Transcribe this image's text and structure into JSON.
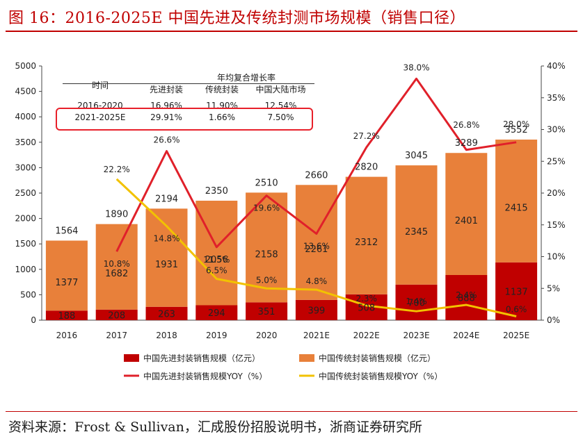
{
  "title": "图 16：2016-2025E 中国先进及传统封测市场规模（销售口径）",
  "source": "资料来源：Frost & Sullivan，汇成股份招股说明书，浙商证券研究所",
  "cagr_table": {
    "header_time": "时间",
    "header_group": "年均复合增长率",
    "col_advanced": "先进封装",
    "col_traditional": "传统封装",
    "col_mainland": "中国大陆市场",
    "rows": [
      {
        "period": "2016-2020",
        "advanced": "16.96%",
        "traditional": "11.90%",
        "mainland": "12.54%"
      },
      {
        "period": "2021-2025E",
        "advanced": "29.91%",
        "traditional": "1.66%",
        "mainland": "7.50%"
      }
    ]
  },
  "chart_data": {
    "type": "bar",
    "stacked": true,
    "categories": [
      "2016",
      "2017",
      "2018",
      "2019",
      "2020",
      "2021E",
      "2022E",
      "2023E",
      "2024E",
      "2025E"
    ],
    "series": [
      {
        "name": "中国先进封装销售规模（亿元）",
        "kind": "bar",
        "color": "#c00000",
        "values": [
          188,
          208,
          263,
          294,
          351,
          399,
          508,
          700,
          888,
          1137
        ]
      },
      {
        "name": "中国传统封装销售规模（亿元）",
        "kind": "bar",
        "color": "#e8803a",
        "values": [
          1377,
          1682,
          1931,
          2056,
          2158,
          2261,
          2312,
          2345,
          2401,
          2415
        ]
      },
      {
        "name": "中国先进封装销售规模YOY（%）",
        "kind": "line",
        "axis": "right",
        "color": "#e0202a",
        "values": [
          null,
          10.8,
          26.6,
          11.5,
          19.6,
          13.6,
          27.2,
          38.0,
          26.8,
          28.0
        ],
        "labels": [
          "",
          "10.8%",
          "26.6%",
          "11.5%",
          "19.6%",
          "13.6%",
          "27.2%",
          "38.0%",
          "26.8%",
          "28.0%"
        ]
      },
      {
        "name": "中国传统封装销售规模YOY（%）",
        "kind": "line",
        "axis": "right",
        "color": "#f2c200",
        "values": [
          null,
          22.2,
          14.8,
          6.5,
          5.0,
          4.8,
          2.3,
          1.4,
          2.4,
          0.6
        ],
        "labels": [
          "",
          "22.2%",
          "14.8%",
          "6.5%",
          "5.0%",
          "4.8%",
          "2.3%",
          "1.4%",
          "2.4%",
          "0.6%"
        ]
      }
    ],
    "totals": [
      1564,
      1890,
      2194,
      2350,
      2510,
      2660,
      2820,
      3045,
      3289,
      3552
    ],
    "left_axis": {
      "min": 0,
      "max": 5000,
      "ticks": [
        "0",
        "500",
        "1000",
        "1500",
        "2000",
        "2500",
        "3000",
        "3500",
        "4000",
        "4500",
        "5000"
      ]
    },
    "right_axis": {
      "min": 0,
      "max": 40,
      "ticks": [
        "0%",
        "5%",
        "10%",
        "15%",
        "20%",
        "25%",
        "30%",
        "35%",
        "40%"
      ]
    },
    "legend_position": "bottom"
  }
}
